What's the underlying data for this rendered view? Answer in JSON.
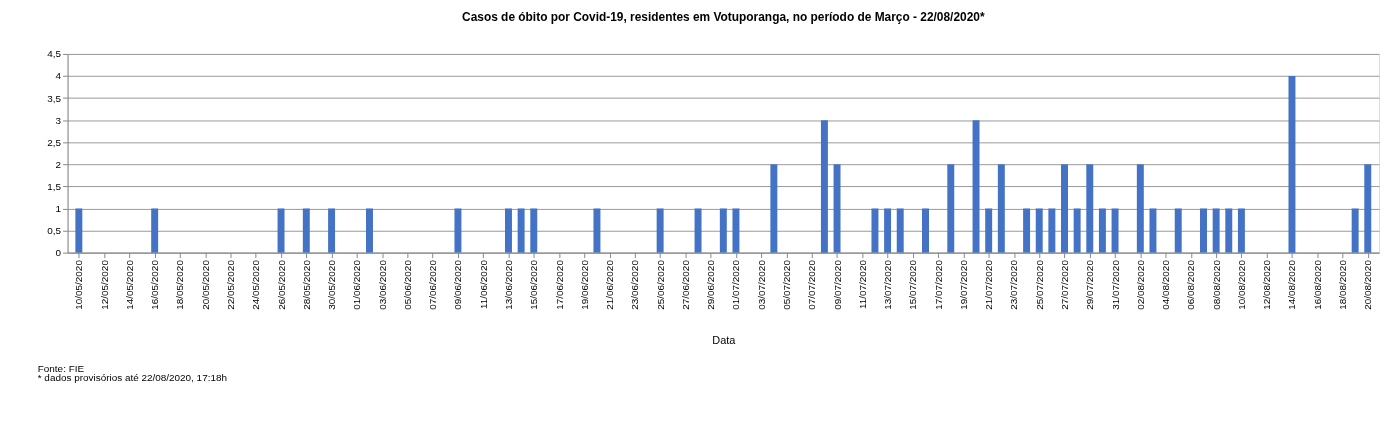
{
  "chart_data": {
    "type": "bar",
    "title": "Casos de óbito por Covid-19, residentes em Votuporanga, no período de Março - 22/08/2020*",
    "xlabel": "Data",
    "categories": [
      "10/05/2020",
      null,
      "12/05/2020",
      null,
      "14/05/2020",
      null,
      "16/05/2020",
      null,
      "18/05/2020",
      null,
      "20/05/2020",
      null,
      "22/05/2020",
      null,
      "24/05/2020",
      null,
      "26/05/2020",
      null,
      "28/05/2020",
      null,
      "30/05/2020",
      null,
      "01/06/2020",
      null,
      "03/06/2020",
      null,
      "05/06/2020",
      null,
      "07/06/2020",
      null,
      "09/06/2020",
      null,
      "11/06/2020",
      null,
      "13/06/2020",
      null,
      "15/06/2020",
      null,
      "17/06/2020",
      null,
      "19/06/2020",
      null,
      "21/06/2020",
      null,
      "23/06/2020",
      null,
      "25/06/2020",
      null,
      "27/06/2020",
      null,
      "29/06/2020",
      null,
      "01/07/2020",
      null,
      "03/07/2020",
      null,
      "05/07/2020",
      null,
      "07/07/2020",
      null,
      "09/07/2020",
      null,
      "11/07/2020",
      null,
      "13/07/2020",
      null,
      "15/07/2020",
      null,
      "17/07/2020",
      null,
      "19/07/2020",
      null,
      "21/07/2020",
      null,
      "23/07/2020",
      null,
      "25/07/2020",
      null,
      "27/07/2020",
      null,
      "29/07/2020",
      null,
      "31/07/2020",
      null,
      "02/08/2020",
      null,
      "04/08/2020",
      null,
      "06/08/2020",
      null,
      "08/08/2020",
      null,
      "10/08/2020",
      null,
      "12/08/2020",
      null,
      "14/08/2020",
      null,
      "16/08/2020",
      null,
      "18/08/2020",
      null,
      "20/08/2020"
    ],
    "values": [
      1,
      null,
      null,
      null,
      null,
      null,
      1,
      null,
      null,
      null,
      null,
      null,
      null,
      null,
      null,
      null,
      1,
      null,
      1,
      null,
      1,
      null,
      null,
      1,
      null,
      null,
      null,
      null,
      null,
      null,
      1,
      null,
      null,
      null,
      1,
      1,
      1,
      null,
      null,
      null,
      null,
      1,
      null,
      null,
      null,
      null,
      1,
      null,
      null,
      1,
      null,
      1,
      1,
      null,
      null,
      2,
      null,
      null,
      null,
      3,
      2,
      null,
      null,
      1,
      1,
      1,
      null,
      1,
      null,
      2,
      null,
      3,
      1,
      2,
      null,
      1,
      1,
      1,
      2,
      1,
      2,
      1,
      1,
      null,
      2,
      1,
      null,
      1,
      null,
      1,
      1,
      1,
      1,
      null,
      null,
      null,
      4,
      null,
      null,
      null,
      null,
      1,
      2
    ],
    "color": "#4472c4",
    "ylim": [
      0,
      4.5
    ],
    "yticks": [
      0,
      {
        "value": 0.5,
        "label": "0,5"
      },
      1,
      {
        "value": 1.5,
        "label": "1,5"
      },
      2,
      {
        "value": 2.5,
        "label": "2,5"
      },
      3,
      {
        "value": 3.5,
        "label": "3,5"
      },
      4,
      {
        "value": 4.5,
        "label": "4,5"
      }
    ],
    "grid": "y",
    "annotations": [
      "Fonte: FIE",
      "* dados provisórios até 22/08/2020, 17:18h"
    ]
  }
}
